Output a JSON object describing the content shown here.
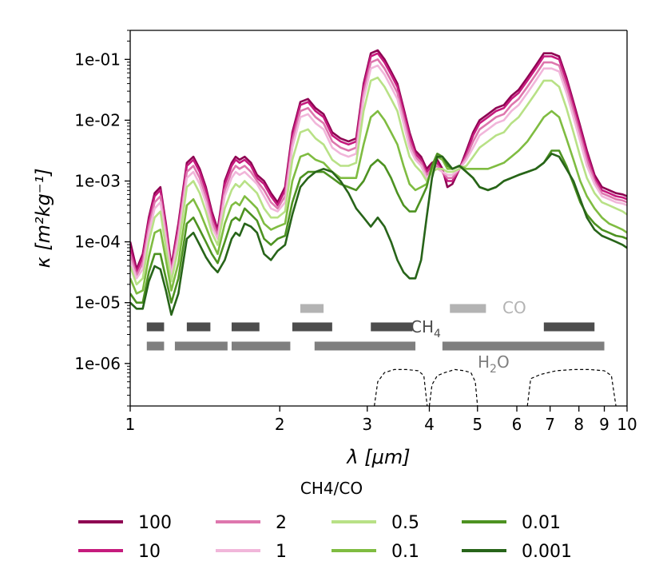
{
  "chart_data": {
    "type": "line",
    "xscale": "log",
    "yscale": "log",
    "xlim": [
      1,
      10
    ],
    "ylim": [
      2e-07,
      0.3
    ],
    "xlabel": "λ [μm]",
    "ylabel": "κ [m²kg⁻¹]",
    "xticks": [
      {
        "value": 1,
        "label": "1"
      },
      {
        "value": 2,
        "label": "2"
      },
      {
        "value": 3,
        "label": "3"
      },
      {
        "value": 4,
        "label": "4"
      },
      {
        "value": 5,
        "label": "5"
      },
      {
        "value": 6,
        "label": "6"
      },
      {
        "value": 7,
        "label": "7"
      },
      {
        "value": 8,
        "label": "8"
      },
      {
        "value": 9,
        "label": "9"
      },
      {
        "value": 10,
        "label": "10"
      }
    ],
    "yticks": [
      {
        "value": 1e-06,
        "label": "1e-06"
      },
      {
        "value": 1e-05,
        "label": "1e-05"
      },
      {
        "value": 0.0001,
        "label": "1e-04"
      },
      {
        "value": 0.001,
        "label": "1e-03"
      },
      {
        "value": 0.01,
        "label": "1e-02"
      },
      {
        "value": 0.1,
        "label": "1e-01"
      }
    ],
    "legend_title": "CH4/CO",
    "legend_placement": "below",
    "x": [
      1.0,
      1.03,
      1.06,
      1.09,
      1.12,
      1.15,
      1.18,
      1.21,
      1.25,
      1.3,
      1.34,
      1.38,
      1.42,
      1.46,
      1.5,
      1.55,
      1.6,
      1.63,
      1.66,
      1.7,
      1.75,
      1.8,
      1.86,
      1.92,
      1.98,
      2.05,
      2.12,
      2.2,
      2.28,
      2.36,
      2.45,
      2.55,
      2.65,
      2.75,
      2.85,
      2.95,
      3.05,
      3.15,
      3.25,
      3.35,
      3.45,
      3.55,
      3.65,
      3.75,
      3.85,
      3.95,
      4.05,
      4.15,
      4.25,
      4.35,
      4.45,
      4.6,
      4.75,
      4.9,
      5.05,
      5.25,
      5.45,
      5.65,
      5.85,
      6.05,
      6.3,
      6.55,
      6.8,
      7.05,
      7.3,
      7.55,
      7.8,
      8.05,
      8.3,
      8.6,
      8.9,
      9.2,
      9.5,
      9.8,
      10.0
    ],
    "series": [
      {
        "name": "100",
        "color": "#8e0152",
        "log10_values": [
          -4.0,
          -4.45,
          -4.2,
          -3.6,
          -3.2,
          -3.1,
          -3.7,
          -4.4,
          -3.7,
          -2.7,
          -2.6,
          -2.8,
          -3.1,
          -3.5,
          -3.8,
          -3.0,
          -2.7,
          -2.6,
          -2.65,
          -2.6,
          -2.7,
          -2.9,
          -3.0,
          -3.2,
          -3.35,
          -3.1,
          -2.2,
          -1.7,
          -1.65,
          -1.8,
          -1.9,
          -2.2,
          -2.3,
          -2.35,
          -2.3,
          -1.4,
          -0.9,
          -0.85,
          -1.0,
          -1.2,
          -1.4,
          -1.8,
          -2.2,
          -2.5,
          -2.6,
          -2.8,
          -2.7,
          -2.65,
          -2.8,
          -3.1,
          -3.05,
          -2.8,
          -2.5,
          -2.2,
          -2.0,
          -1.9,
          -1.8,
          -1.75,
          -1.6,
          -1.5,
          -1.3,
          -1.1,
          -0.9,
          -0.9,
          -0.95,
          -1.3,
          -1.7,
          -2.1,
          -2.5,
          -2.9,
          -3.1,
          -3.15,
          -3.2,
          -3.22,
          -3.25
        ]
      },
      {
        "name": "10",
        "color": "#c51b7d",
        "log10_values": [
          -4.1,
          -4.5,
          -4.25,
          -3.65,
          -3.25,
          -3.15,
          -3.75,
          -4.45,
          -3.75,
          -2.75,
          -2.65,
          -2.85,
          -3.15,
          -3.55,
          -3.85,
          -3.05,
          -2.75,
          -2.65,
          -2.7,
          -2.65,
          -2.75,
          -2.95,
          -3.05,
          -3.25,
          -3.4,
          -3.15,
          -2.25,
          -1.75,
          -1.7,
          -1.85,
          -1.95,
          -2.25,
          -2.35,
          -2.4,
          -2.35,
          -1.45,
          -0.95,
          -0.9,
          -1.05,
          -1.25,
          -1.45,
          -1.85,
          -2.25,
          -2.55,
          -2.65,
          -2.85,
          -2.75,
          -2.7,
          -2.85,
          -3.0,
          -3.0,
          -2.8,
          -2.55,
          -2.25,
          -2.05,
          -1.95,
          -1.85,
          -1.8,
          -1.65,
          -1.55,
          -1.35,
          -1.15,
          -0.95,
          -0.95,
          -1.0,
          -1.35,
          -1.75,
          -2.15,
          -2.55,
          -2.95,
          -3.15,
          -3.2,
          -3.25,
          -3.27,
          -3.3
        ]
      },
      {
        "name": "2",
        "color": "#de77ae",
        "log10_values": [
          -4.2,
          -4.55,
          -4.35,
          -3.75,
          -3.35,
          -3.25,
          -3.85,
          -4.5,
          -3.85,
          -2.85,
          -2.75,
          -2.95,
          -3.25,
          -3.65,
          -3.9,
          -3.15,
          -2.85,
          -2.75,
          -2.8,
          -2.75,
          -2.85,
          -3.0,
          -3.15,
          -3.35,
          -3.45,
          -3.25,
          -2.35,
          -1.85,
          -1.8,
          -1.95,
          -2.05,
          -2.35,
          -2.45,
          -2.5,
          -2.45,
          -1.55,
          -1.05,
          -1.0,
          -1.15,
          -1.35,
          -1.55,
          -1.95,
          -2.35,
          -2.6,
          -2.7,
          -2.9,
          -2.8,
          -2.75,
          -2.85,
          -2.95,
          -2.95,
          -2.8,
          -2.6,
          -2.35,
          -2.15,
          -2.05,
          -1.95,
          -1.9,
          -1.75,
          -1.65,
          -1.45,
          -1.25,
          -1.05,
          -1.05,
          -1.1,
          -1.45,
          -1.85,
          -2.25,
          -2.65,
          -3.0,
          -3.2,
          -3.25,
          -3.3,
          -3.32,
          -3.35
        ]
      },
      {
        "name": "1",
        "color": "#f1b6da",
        "log10_values": [
          -4.3,
          -4.6,
          -4.45,
          -3.85,
          -3.45,
          -3.35,
          -3.95,
          -4.55,
          -3.95,
          -2.95,
          -2.85,
          -3.05,
          -3.35,
          -3.75,
          -3.95,
          -3.25,
          -2.95,
          -2.85,
          -2.9,
          -2.85,
          -2.95,
          -3.05,
          -3.25,
          -3.45,
          -3.5,
          -3.35,
          -2.45,
          -1.95,
          -1.9,
          -2.05,
          -2.15,
          -2.45,
          -2.55,
          -2.6,
          -2.55,
          -1.65,
          -1.15,
          -1.1,
          -1.25,
          -1.45,
          -1.65,
          -2.05,
          -2.45,
          -2.65,
          -2.75,
          -2.95,
          -2.85,
          -2.8,
          -2.85,
          -2.9,
          -2.9,
          -2.8,
          -2.65,
          -2.45,
          -2.25,
          -2.15,
          -2.05,
          -2.0,
          -1.85,
          -1.75,
          -1.55,
          -1.35,
          -1.15,
          -1.15,
          -1.2,
          -1.55,
          -1.95,
          -2.35,
          -2.75,
          -3.05,
          -3.25,
          -3.3,
          -3.35,
          -3.37,
          -3.4
        ]
      },
      {
        "name": "0.5",
        "color": "#b8e186",
        "log10_values": [
          -4.4,
          -4.7,
          -4.6,
          -4.0,
          -3.6,
          -3.5,
          -4.1,
          -4.65,
          -4.1,
          -3.1,
          -3.0,
          -3.2,
          -3.5,
          -3.85,
          -4.05,
          -3.45,
          -3.15,
          -3.05,
          -3.1,
          -3.0,
          -3.1,
          -3.2,
          -3.45,
          -3.6,
          -3.6,
          -3.5,
          -2.65,
          -2.2,
          -2.15,
          -2.3,
          -2.4,
          -2.65,
          -2.75,
          -2.75,
          -2.7,
          -1.85,
          -1.35,
          -1.3,
          -1.45,
          -1.65,
          -1.85,
          -2.25,
          -2.6,
          -2.75,
          -2.85,
          -3.0,
          -2.85,
          -2.8,
          -2.8,
          -2.85,
          -2.85,
          -2.8,
          -2.75,
          -2.6,
          -2.45,
          -2.35,
          -2.25,
          -2.2,
          -2.05,
          -1.95,
          -1.75,
          -1.55,
          -1.35,
          -1.35,
          -1.45,
          -1.8,
          -2.2,
          -2.6,
          -2.95,
          -3.2,
          -3.35,
          -3.4,
          -3.45,
          -3.5,
          -3.55
        ]
      },
      {
        "name": "0.1",
        "color": "#7fbc41",
        "log10_values": [
          -4.6,
          -4.85,
          -4.8,
          -4.25,
          -3.85,
          -3.8,
          -4.3,
          -4.8,
          -4.35,
          -3.4,
          -3.3,
          -3.5,
          -3.75,
          -4.0,
          -4.2,
          -3.7,
          -3.4,
          -3.35,
          -3.4,
          -3.25,
          -3.35,
          -3.45,
          -3.7,
          -3.8,
          -3.75,
          -3.7,
          -3.0,
          -2.6,
          -2.55,
          -2.65,
          -2.7,
          -2.85,
          -2.95,
          -2.95,
          -2.95,
          -2.4,
          -1.95,
          -1.85,
          -2.0,
          -2.2,
          -2.4,
          -2.75,
          -3.05,
          -3.15,
          -3.1,
          -3.05,
          -2.8,
          -2.6,
          -2.65,
          -2.8,
          -2.8,
          -2.75,
          -2.8,
          -2.8,
          -2.8,
          -2.8,
          -2.75,
          -2.7,
          -2.6,
          -2.5,
          -2.35,
          -2.15,
          -1.95,
          -1.85,
          -1.95,
          -2.3,
          -2.65,
          -3.0,
          -3.25,
          -3.45,
          -3.6,
          -3.7,
          -3.75,
          -3.8,
          -3.85
        ]
      },
      {
        "name": "0.01",
        "color": "#4d9221",
        "log10_values": [
          -4.85,
          -5.0,
          -5.0,
          -4.5,
          -4.2,
          -4.2,
          -4.6,
          -5.0,
          -4.6,
          -3.7,
          -3.6,
          -3.8,
          -4.0,
          -4.2,
          -4.35,
          -4.0,
          -3.65,
          -3.6,
          -3.65,
          -3.45,
          -3.55,
          -3.65,
          -3.95,
          -4.05,
          -3.95,
          -3.9,
          -3.35,
          -2.95,
          -2.85,
          -2.85,
          -2.85,
          -2.95,
          -3.05,
          -3.1,
          -3.15,
          -3.0,
          -2.75,
          -2.65,
          -2.75,
          -2.95,
          -3.2,
          -3.4,
          -3.5,
          -3.5,
          -3.3,
          -3.1,
          -2.75,
          -2.55,
          -2.6,
          -2.75,
          -2.8,
          -2.75,
          -2.85,
          -2.95,
          -3.1,
          -3.15,
          -3.1,
          -3.0,
          -2.95,
          -2.9,
          -2.85,
          -2.8,
          -2.7,
          -2.5,
          -2.5,
          -2.75,
          -3.05,
          -3.35,
          -3.55,
          -3.7,
          -3.8,
          -3.85,
          -3.9,
          -3.92,
          -3.95
        ]
      },
      {
        "name": "0.001",
        "color": "#276419",
        "log10_values": [
          -5.0,
          -5.1,
          -5.1,
          -4.65,
          -4.4,
          -4.45,
          -4.8,
          -5.2,
          -4.85,
          -3.95,
          -3.85,
          -4.05,
          -4.25,
          -4.4,
          -4.5,
          -4.3,
          -3.95,
          -3.85,
          -3.9,
          -3.7,
          -3.75,
          -3.85,
          -4.2,
          -4.3,
          -4.15,
          -4.05,
          -3.55,
          -3.1,
          -2.95,
          -2.85,
          -2.8,
          -2.85,
          -3.0,
          -3.2,
          -3.45,
          -3.6,
          -3.75,
          -3.6,
          -3.75,
          -4.0,
          -4.3,
          -4.5,
          -4.6,
          -4.6,
          -4.3,
          -3.6,
          -2.95,
          -2.6,
          -2.6,
          -2.7,
          -2.8,
          -2.75,
          -2.85,
          -2.95,
          -3.1,
          -3.15,
          -3.1,
          -3.0,
          -2.95,
          -2.9,
          -2.85,
          -2.8,
          -2.7,
          -2.55,
          -2.6,
          -2.8,
          -3.0,
          -3.3,
          -3.6,
          -3.8,
          -3.9,
          -3.95,
          -4.0,
          -4.05,
          -4.1
        ]
      }
    ],
    "absorption_bands": {
      "CO": {
        "label": "CO",
        "color": "#b3b3b3",
        "ranges": [
          [
            2.2,
            2.45
          ],
          [
            4.4,
            5.2
          ]
        ]
      },
      "CH4": {
        "label": "CH₄",
        "label_main": "CH",
        "label_sub": "4",
        "color": "#4d4d4d",
        "ranges": [
          [
            1.08,
            1.17
          ],
          [
            1.3,
            1.45
          ],
          [
            1.6,
            1.82
          ],
          [
            2.12,
            2.55
          ],
          [
            3.05,
            3.7
          ],
          [
            6.8,
            8.6
          ]
        ]
      },
      "H2O": {
        "label": "H₂O",
        "label_main": "H",
        "label_sub": "2",
        "label_end": "O",
        "color": "#7f7f7f",
        "ranges": [
          [
            1.08,
            1.17
          ],
          [
            1.23,
            1.57
          ],
          [
            1.6,
            2.1
          ],
          [
            2.35,
            3.75
          ],
          [
            4.25,
            9.0
          ]
        ]
      }
    },
    "filter_curves": [
      {
        "x": [
          3.1,
          3.15,
          3.25,
          3.4,
          3.6,
          3.8,
          3.9,
          3.96
        ],
        "log10_values": [
          -6.7,
          -6.3,
          -6.15,
          -6.1,
          -6.1,
          -6.12,
          -6.2,
          -6.7
        ]
      },
      {
        "x": [
          4.0,
          4.05,
          4.15,
          4.3,
          4.5,
          4.7,
          4.85,
          4.95,
          5.0
        ],
        "log10_values": [
          -6.7,
          -6.35,
          -6.2,
          -6.15,
          -6.1,
          -6.12,
          -6.15,
          -6.3,
          -6.7
        ]
      },
      {
        "x": [
          6.3,
          6.4,
          6.7,
          7.2,
          7.8,
          8.4,
          9.0,
          9.3,
          9.5
        ],
        "log10_values": [
          -6.7,
          -6.25,
          -6.18,
          -6.12,
          -6.1,
          -6.1,
          -6.12,
          -6.2,
          -6.7
        ]
      }
    ]
  }
}
